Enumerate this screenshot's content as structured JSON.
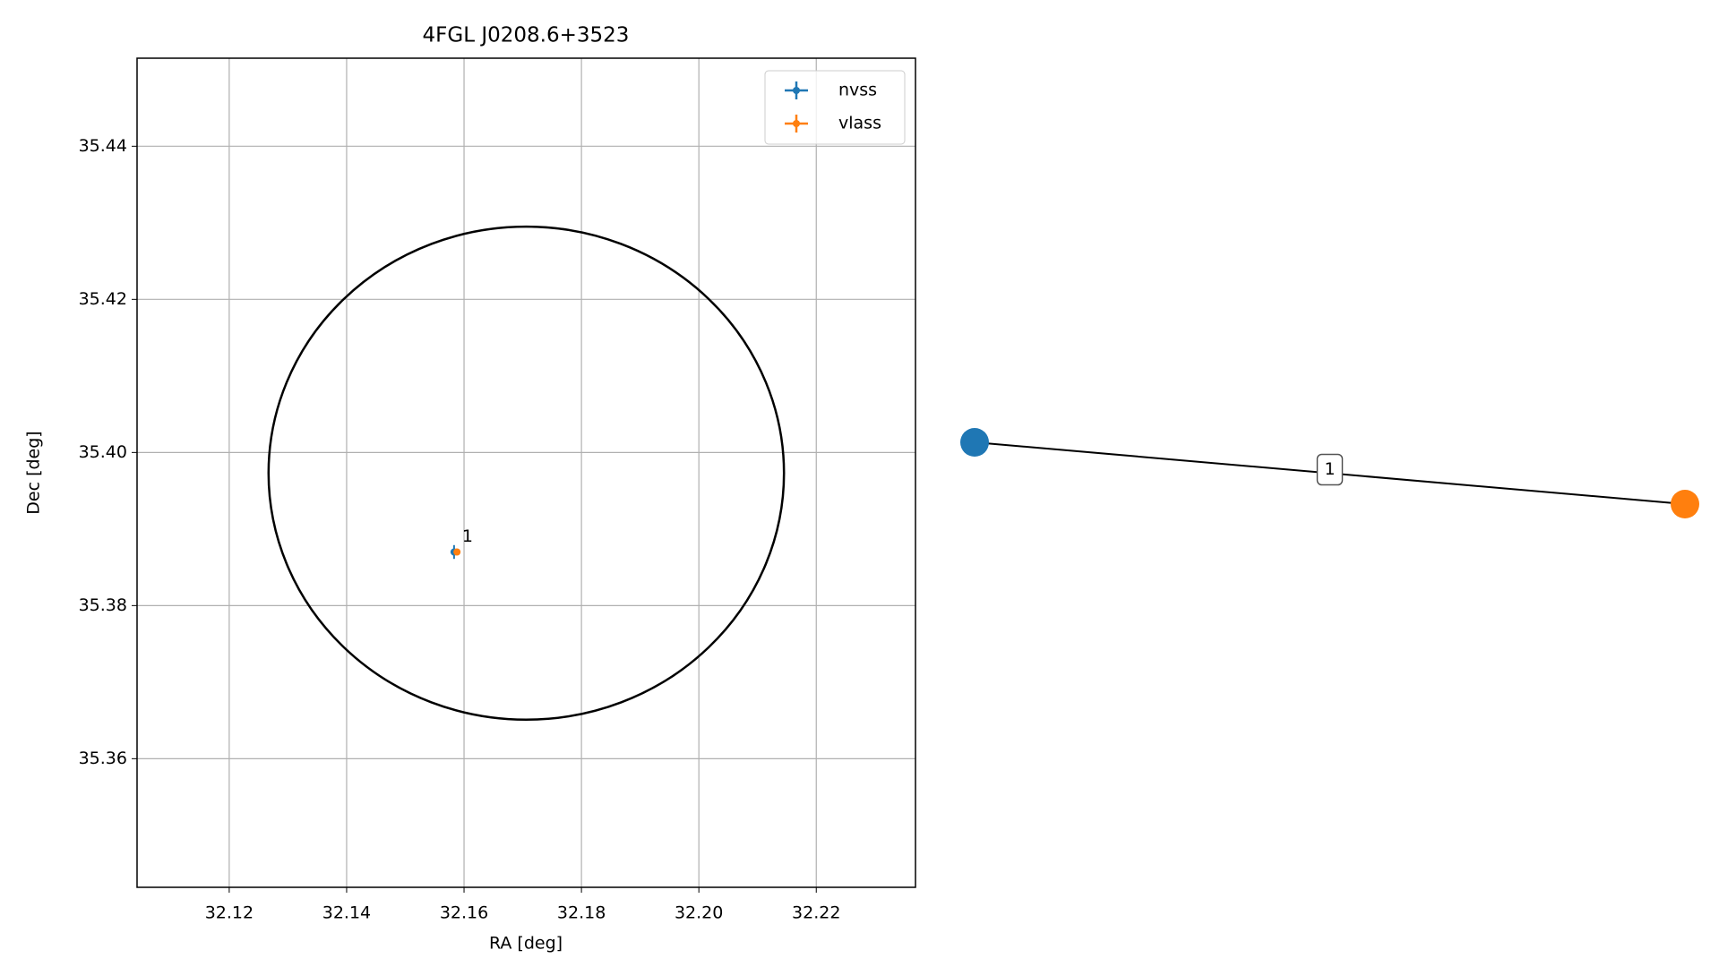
{
  "chart_data": {
    "type": "errorbar",
    "title": "4FGL J0208.6+3523",
    "xlabel": "RA [deg]",
    "ylabel": "Dec [deg]",
    "xlim": [
      32.1043,
      32.2369
    ],
    "ylim": [
      35.3432,
      35.4515
    ],
    "xticks": [
      32.12,
      32.14,
      32.16,
      32.18,
      {
        "value": 32.2,
        "label": "32.20"
      },
      32.22
    ],
    "yticks": [
      35.36,
      35.38,
      {
        "value": 35.4,
        "label": "35.40"
      },
      35.42,
      35.44
    ],
    "grid": true,
    "legend": "upper right",
    "series": [
      {
        "name": "nvss",
        "color": "#1f77b4",
        "x": [
          32.1583
        ],
        "y": [
          35.387
        ],
        "xerr": [
          0.0006
        ],
        "yerr": [
          0.0009
        ],
        "point_labels": [
          "1"
        ]
      },
      {
        "name": "vlass",
        "color": "#ff7f0e",
        "x": [
          32.1588
        ],
        "y": [
          35.387
        ],
        "xerr": [
          0.0002
        ],
        "yerr": [
          0.0002
        ]
      }
    ],
    "region": {
      "ra": 32.1706,
      "dec": 35.3973,
      "ra_radius": 0.0439,
      "dec_radius": 0.0322
    },
    "graph": {
      "edges": [
        {
          "source": "nvss",
          "target": "vlass",
          "label": "1"
        }
      ]
    }
  }
}
